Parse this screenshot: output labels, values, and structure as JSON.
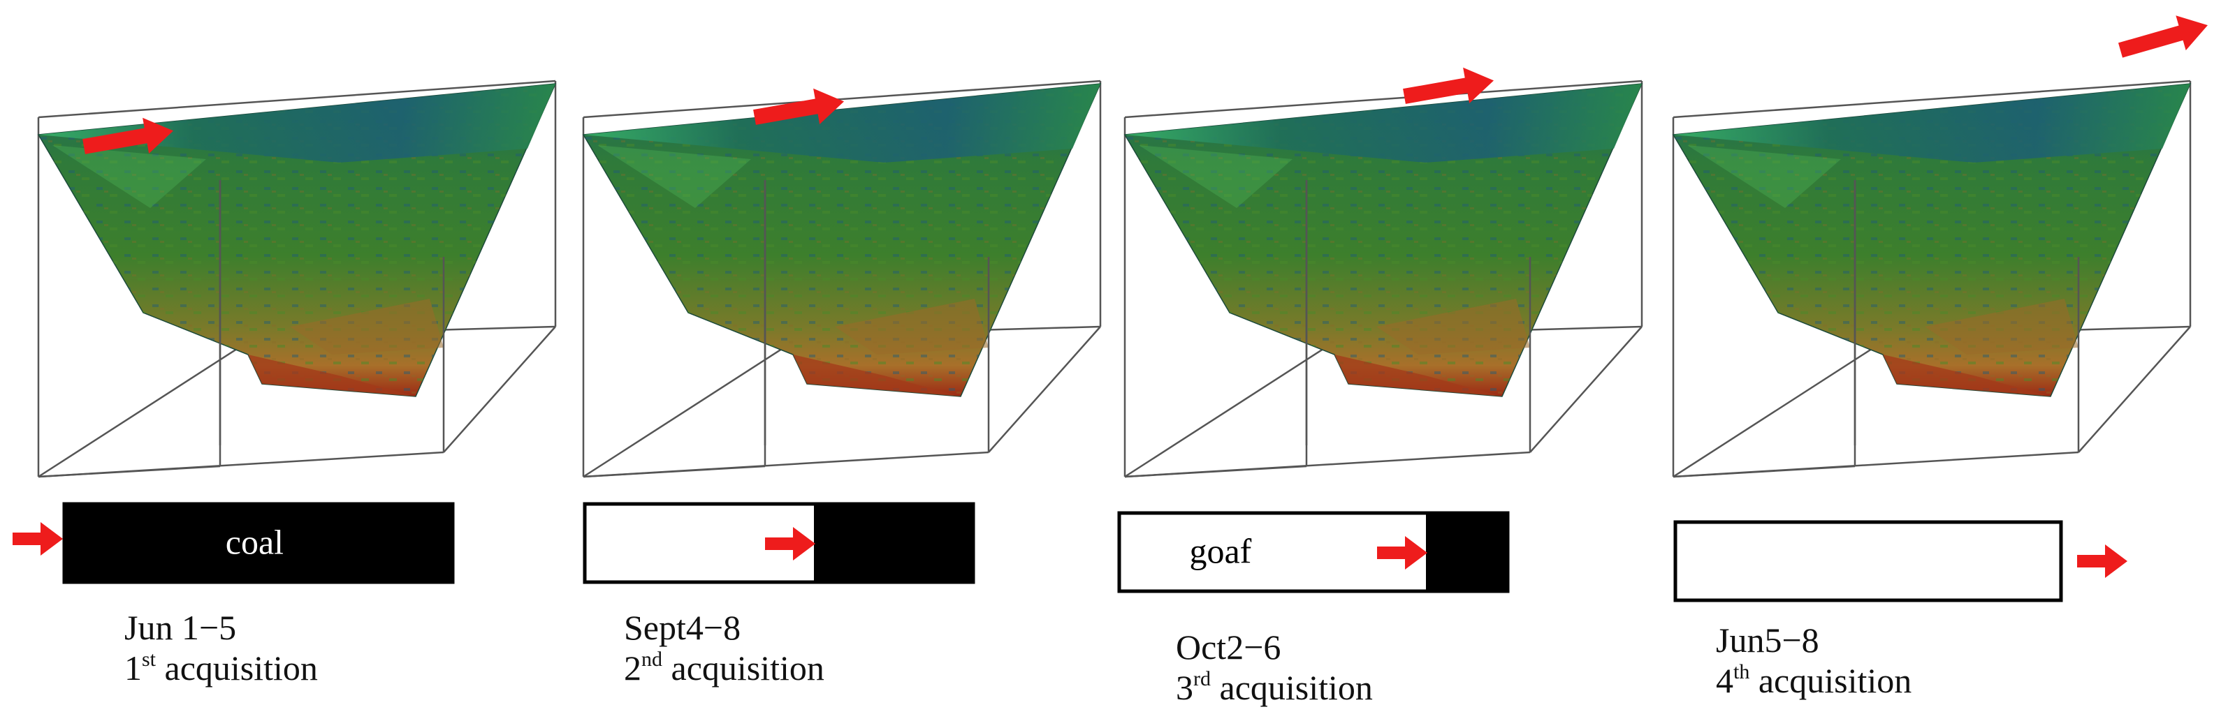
{
  "panels": [
    {
      "date": "Jun 1−5",
      "acq_number": "1",
      "acq_suffix": "st",
      "acq_word": "acquisition",
      "bar_label": "coal",
      "mined_fraction": 0.0
    },
    {
      "date": "Sept4−8",
      "acq_number": "2",
      "acq_suffix": "nd",
      "acq_word": "acquisition",
      "bar_label": "",
      "mined_fraction": 0.59
    },
    {
      "date": "Oct2−6",
      "acq_number": "3",
      "acq_suffix": "rd",
      "acq_word": "acquisition",
      "bar_label": "goaf",
      "mined_fraction": 0.79
    },
    {
      "date": "Jun5−8",
      "acq_number": "4",
      "acq_suffix": "th",
      "acq_word": "acquisition",
      "bar_label": "",
      "mined_fraction": 1.0
    }
  ],
  "colors": {
    "coal": "#000000",
    "goaf": "#ffffff",
    "arrow": "#ee1c1c",
    "box_edge": "#555555",
    "surface_green": "#2e7d32",
    "surface_blue": "#1f5a78",
    "surface_orange": "#a8702a",
    "surface_red": "#9c2a14"
  }
}
